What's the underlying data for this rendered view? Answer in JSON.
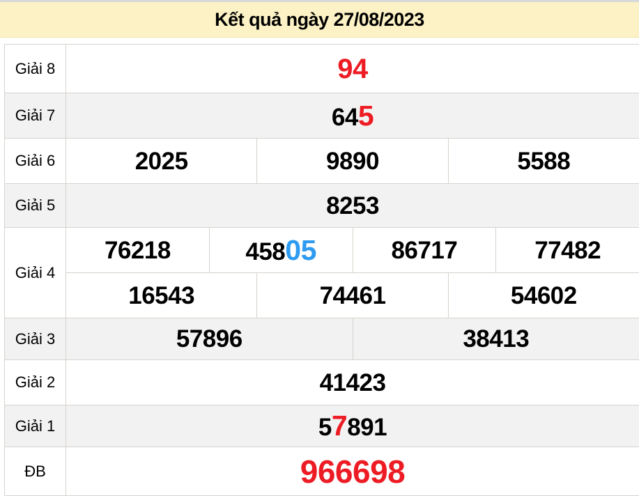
{
  "header": {
    "title": "Kết quả ngày 27/08/2023"
  },
  "colors": {
    "red": "#ed1c24",
    "blue": "#2e9bf0",
    "header_bg": "#fdf2c6",
    "row_alt_bg": "#f2f2f2",
    "border": "#d6d3cc"
  },
  "rows": {
    "g8": {
      "label": "Giải 8",
      "value": "94"
    },
    "g7": {
      "label": "Giải 7",
      "prefix": "64",
      "highlight": "5"
    },
    "g6": {
      "label": "Giải 6",
      "values": [
        "2025",
        "9890",
        "5588"
      ]
    },
    "g5": {
      "label": "Giải 5",
      "value": "8253"
    },
    "g4": {
      "label": "Giải 4",
      "row1_c0": "76218",
      "row1_c1_prefix": "458",
      "row1_c1_highlight": "05",
      "row1_c2": "86717",
      "row1_c3": "77482",
      "row2": [
        "16543",
        "74461",
        "54602"
      ]
    },
    "g3": {
      "label": "Giải 3",
      "values": [
        "57896",
        "38413"
      ]
    },
    "g2": {
      "label": "Giải 2",
      "value": "41423"
    },
    "g1": {
      "label": "Giải 1",
      "prefix": "5",
      "highlight": "7",
      "suffix": "891"
    },
    "db": {
      "label": "ĐB",
      "value": "966698"
    }
  }
}
